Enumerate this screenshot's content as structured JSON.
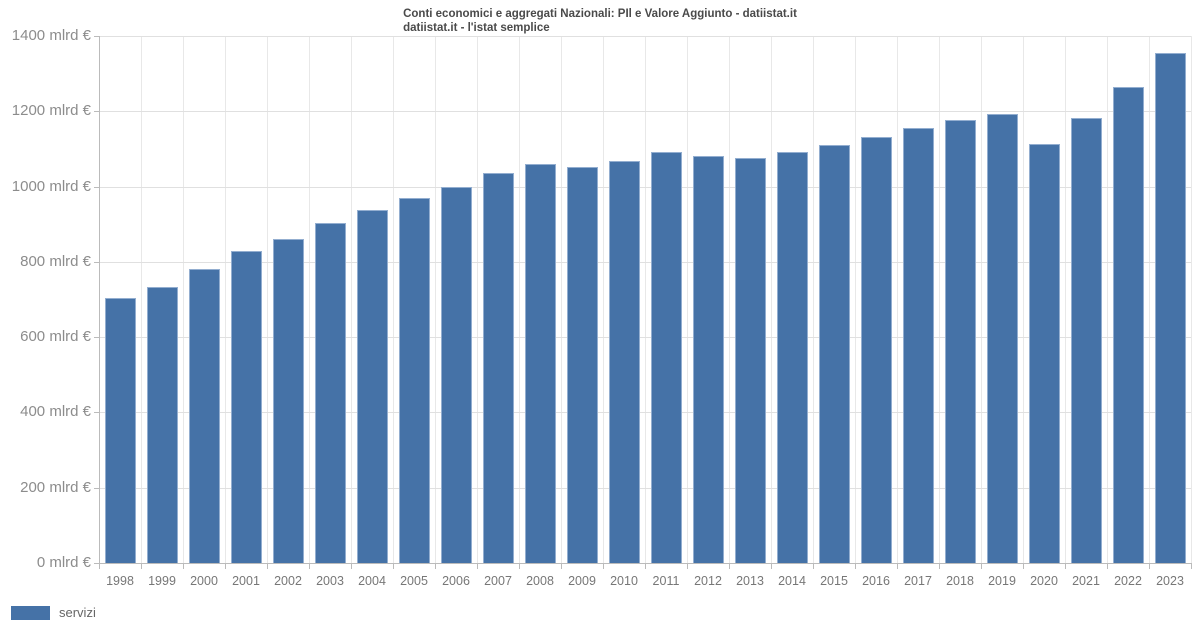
{
  "title": {
    "line1": "Conti economici e aggregati Nazionali: PIl e Valore Aggiunto - datiistat.it",
    "line2": "datiistat.it - l'istat semplice"
  },
  "legend": {
    "label": "servizi"
  },
  "colors": {
    "bar_fill": "#4572A7",
    "bar_stroke": "#93aed0",
    "grid_h": "#e0e0e0",
    "grid_v": "#e8e8e8",
    "axis": "#bbbbbb",
    "y_label": "#8c8c8c",
    "x_label": "#777777",
    "title_text": "#4a4a4a",
    "background": "#ffffff"
  },
  "chart_data": {
    "type": "bar",
    "title": "Conti economici e aggregati Nazionali: PIl e Valore Aggiunto - datiistat.it  datiistat.it - l'istat semplice",
    "xlabel": "",
    "ylabel": "mlrd €",
    "ylim": [
      0,
      1400
    ],
    "ytick_step": 200,
    "ytick_suffix": " mlrd €",
    "grid": true,
    "legend_position": "bottom-left",
    "categories": [
      "1998",
      "1999",
      "2000",
      "2001",
      "2002",
      "2003",
      "2004",
      "2005",
      "2006",
      "2007",
      "2008",
      "2009",
      "2010",
      "2011",
      "2012",
      "2013",
      "2014",
      "2015",
      "2016",
      "2017",
      "2018",
      "2019",
      "2020",
      "2021",
      "2022",
      "2023"
    ],
    "series": [
      {
        "name": "servizi",
        "values": [
          705,
          732,
          782,
          830,
          862,
          903,
          938,
          970,
          1000,
          1036,
          1060,
          1052,
          1068,
          1091,
          1080,
          1075,
          1093,
          1110,
          1131,
          1155,
          1178,
          1192,
          1112,
          1182,
          1265,
          1355
        ]
      }
    ]
  }
}
